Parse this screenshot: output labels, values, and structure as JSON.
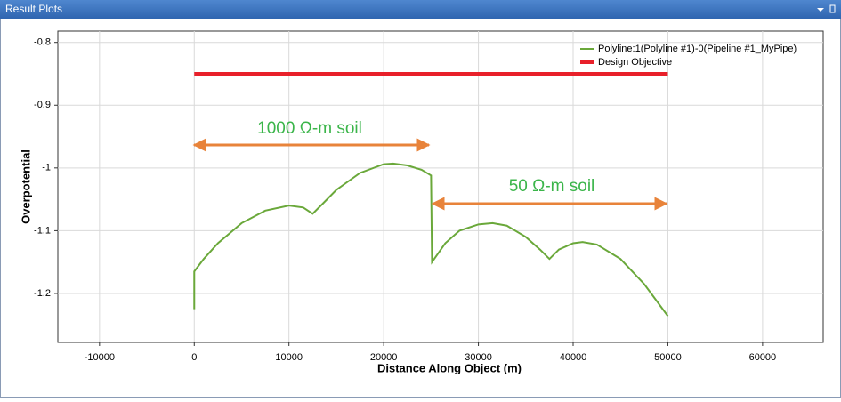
{
  "window": {
    "title": "Result Plots"
  },
  "chart_data": {
    "type": "line",
    "xlabel": "Distance Along Object (m)",
    "ylabel": "Overpotential",
    "xlim": [
      -14400,
      66400
    ],
    "ylim": [
      -1.278,
      -0.782
    ],
    "xticks": [
      -10000,
      0,
      10000,
      20000,
      30000,
      40000,
      50000,
      60000
    ],
    "yticks": [
      -0.8,
      -0.9,
      -1,
      -1.1,
      -1.2
    ],
    "grid": true,
    "legend": "upper right",
    "series": [
      {
        "name": "Polyline:1(Polyline #1)-0(Pipeline #1_MyPipe)",
        "color": "#6aa83a",
        "x": [
          0,
          0,
          1000,
          2500,
          5000,
          7500,
          10000,
          11500,
          12500,
          13500,
          15000,
          17500,
          20000,
          21000,
          22500,
          24000,
          25000,
          25100,
          26500,
          28000,
          30000,
          31500,
          33000,
          35000,
          36500,
          37500,
          38500,
          40000,
          41000,
          42500,
          45000,
          47500,
          50000
        ],
        "values": [
          -1.225,
          -1.165,
          -1.145,
          -1.12,
          -1.088,
          -1.068,
          -1.06,
          -1.063,
          -1.073,
          -1.058,
          -1.035,
          -1.008,
          -0.994,
          -0.993,
          -0.996,
          -1.003,
          -1.012,
          -1.15,
          -1.12,
          -1.1,
          -1.09,
          -1.088,
          -1.092,
          -1.11,
          -1.13,
          -1.145,
          -1.13,
          -1.12,
          -1.118,
          -1.122,
          -1.145,
          -1.185,
          -1.236
        ]
      },
      {
        "name": "Design Objective",
        "color": "#e8202a",
        "x": [
          0,
          50000
        ],
        "values": [
          -0.85,
          -0.85
        ]
      }
    ],
    "annotations": [
      "1000 Ω-m soil",
      "50 Ω-m soil"
    ]
  }
}
